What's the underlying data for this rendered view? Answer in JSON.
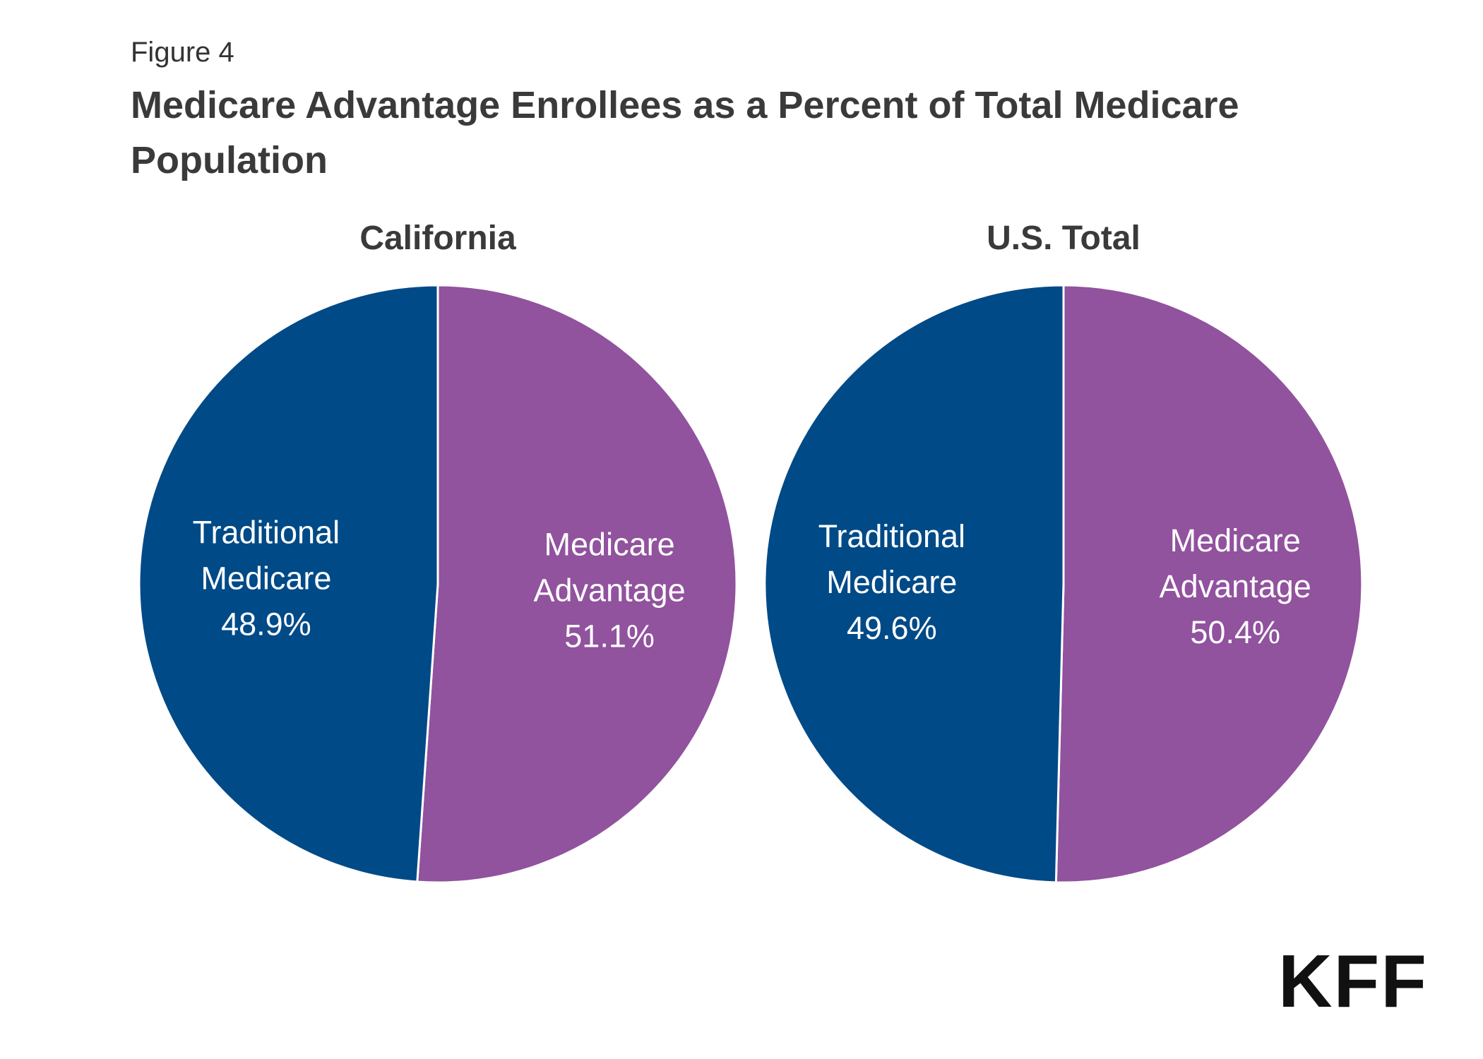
{
  "figure_label": "Figure 4",
  "title": "Medicare Advantage Enrollees as a Percent of Total Medicare Population",
  "logo": "KFF",
  "colors": {
    "traditional": "#004a87",
    "advantage": "#91529e"
  },
  "chart_data": [
    {
      "type": "pie",
      "title": "California",
      "slices": [
        {
          "label_lines": [
            "Medicare",
            "Advantage"
          ],
          "value_label": "51.1%",
          "value": 51.1,
          "color": "#91529e"
        },
        {
          "label_lines": [
            "Traditional",
            "Medicare"
          ],
          "value_label": "48.9%",
          "value": 48.9,
          "color": "#004a87"
        }
      ]
    },
    {
      "type": "pie",
      "title": "U.S. Total",
      "slices": [
        {
          "label_lines": [
            "Medicare",
            "Advantage"
          ],
          "value_label": "50.4%",
          "value": 50.4,
          "color": "#91529e"
        },
        {
          "label_lines": [
            "Traditional",
            "Medicare"
          ],
          "value_label": "49.6%",
          "value": 49.6,
          "color": "#004a87"
        }
      ]
    }
  ]
}
